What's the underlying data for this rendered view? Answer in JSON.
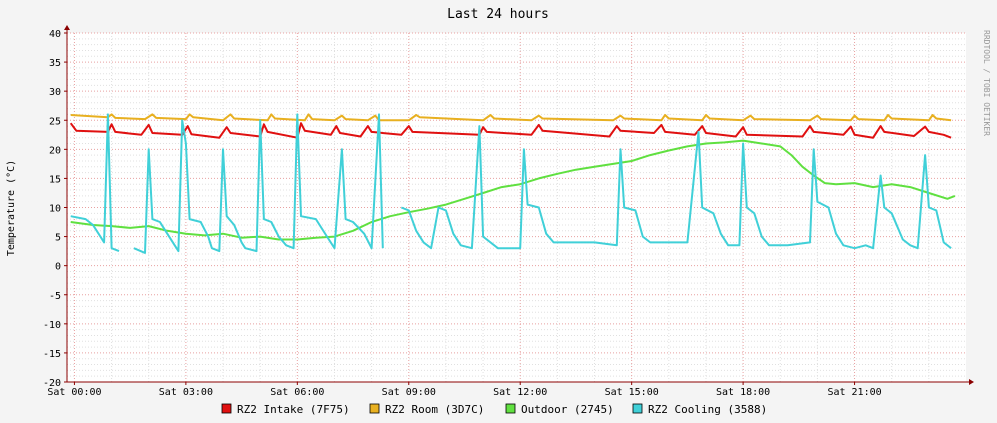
{
  "chart_data": {
    "type": "line",
    "title": "Last 24 hours",
    "ylabel": "Temperature (°C)",
    "watermark": "RRDTOOL / TOBI OETIKER",
    "ylim": [
      -20,
      40
    ],
    "yticks": [
      40,
      35,
      30,
      25,
      20,
      15,
      10,
      5,
      0,
      -5,
      -10,
      -15,
      -20
    ],
    "xlim": [
      -0.2,
      24.0
    ],
    "xticks": [
      {
        "label": "Sat 00:00",
        "h": 0
      },
      {
        "label": "Sat 03:00",
        "h": 3
      },
      {
        "label": "Sat 06:00",
        "h": 6
      },
      {
        "label": "Sat 09:00",
        "h": 9
      },
      {
        "label": "Sat 12:00",
        "h": 12
      },
      {
        "label": "Sat 15:00",
        "h": 15
      },
      {
        "label": "Sat 18:00",
        "h": 18
      },
      {
        "label": "Sat 21:00",
        "h": 21
      }
    ],
    "colors": {
      "background": "#f4f4f4",
      "plot": "#ffffff",
      "grid_major": "#e8a0a0",
      "grid_minor": "#e0e0e0",
      "axis": "#8b0000"
    },
    "series": [
      {
        "name": "RZ2 Intake (7F75)",
        "color": "#e01010",
        "points": [
          [
            -0.1,
            24.5
          ],
          [
            0.05,
            23.2
          ],
          [
            0.9,
            23.0
          ],
          [
            1.0,
            24.3
          ],
          [
            1.1,
            23.0
          ],
          [
            1.8,
            22.5
          ],
          [
            2.0,
            24.2
          ],
          [
            2.1,
            22.8
          ],
          [
            2.9,
            22.5
          ],
          [
            3.05,
            24.0
          ],
          [
            3.15,
            22.6
          ],
          [
            3.9,
            22.0
          ],
          [
            4.1,
            23.8
          ],
          [
            4.2,
            22.8
          ],
          [
            5.0,
            22.2
          ],
          [
            5.1,
            24.3
          ],
          [
            5.2,
            23.0
          ],
          [
            6.0,
            22.0
          ],
          [
            6.1,
            24.5
          ],
          [
            6.2,
            23.2
          ],
          [
            6.9,
            22.5
          ],
          [
            7.05,
            24.0
          ],
          [
            7.15,
            22.8
          ],
          [
            7.7,
            22.2
          ],
          [
            7.9,
            24.0
          ],
          [
            8.0,
            23.0
          ],
          [
            8.8,
            22.5
          ],
          [
            9.0,
            24.0
          ],
          [
            9.1,
            23.0
          ],
          [
            10.9,
            22.5
          ],
          [
            11.0,
            23.8
          ],
          [
            11.1,
            23.0
          ],
          [
            12.3,
            22.5
          ],
          [
            12.5,
            24.2
          ],
          [
            12.6,
            23.2
          ],
          [
            14.4,
            22.2
          ],
          [
            14.6,
            24.0
          ],
          [
            14.7,
            23.2
          ],
          [
            15.6,
            22.8
          ],
          [
            15.8,
            24.2
          ],
          [
            15.9,
            23.0
          ],
          [
            16.7,
            22.5
          ],
          [
            16.9,
            24.0
          ],
          [
            17.0,
            22.8
          ],
          [
            17.8,
            22.2
          ],
          [
            18.0,
            23.8
          ],
          [
            18.1,
            22.5
          ],
          [
            19.6,
            22.2
          ],
          [
            19.8,
            24.0
          ],
          [
            19.9,
            23.0
          ],
          [
            20.7,
            22.5
          ],
          [
            20.9,
            23.9
          ],
          [
            21.0,
            22.5
          ],
          [
            21.5,
            22.0
          ],
          [
            21.7,
            24.0
          ],
          [
            21.8,
            23.0
          ],
          [
            22.6,
            22.3
          ],
          [
            22.9,
            23.9
          ],
          [
            23.0,
            23.0
          ],
          [
            23.4,
            22.5
          ],
          [
            23.6,
            22.0
          ]
        ]
      },
      {
        "name": "RZ2 Room (3D7C)",
        "color": "#e8b020",
        "points": [
          [
            -0.1,
            25.9
          ],
          [
            0.9,
            25.5
          ],
          [
            1.0,
            26.0
          ],
          [
            1.1,
            25.4
          ],
          [
            1.9,
            25.2
          ],
          [
            2.1,
            26.0
          ],
          [
            2.2,
            25.4
          ],
          [
            3.0,
            25.2
          ],
          [
            3.1,
            26.0
          ],
          [
            3.2,
            25.5
          ],
          [
            4.0,
            25.0
          ],
          [
            4.2,
            26.0
          ],
          [
            4.3,
            25.3
          ],
          [
            5.2,
            25.0
          ],
          [
            5.3,
            26.0
          ],
          [
            5.4,
            25.3
          ],
          [
            6.2,
            25.0
          ],
          [
            6.3,
            26.0
          ],
          [
            6.4,
            25.2
          ],
          [
            7.0,
            25.0
          ],
          [
            7.2,
            25.8
          ],
          [
            7.3,
            25.2
          ],
          [
            7.9,
            25.0
          ],
          [
            8.1,
            25.8
          ],
          [
            8.2,
            25.0
          ],
          [
            9.0,
            25.0
          ],
          [
            9.2,
            25.9
          ],
          [
            9.3,
            25.5
          ],
          [
            11.0,
            25.0
          ],
          [
            11.2,
            25.9
          ],
          [
            11.3,
            25.3
          ],
          [
            12.3,
            25.0
          ],
          [
            12.5,
            25.8
          ],
          [
            12.6,
            25.3
          ],
          [
            14.5,
            25.0
          ],
          [
            14.7,
            25.8
          ],
          [
            14.8,
            25.3
          ],
          [
            15.8,
            25.0
          ],
          [
            15.9,
            25.9
          ],
          [
            16.0,
            25.3
          ],
          [
            16.9,
            25.0
          ],
          [
            17.0,
            25.9
          ],
          [
            17.1,
            25.3
          ],
          [
            18.0,
            25.0
          ],
          [
            18.2,
            25.8
          ],
          [
            18.3,
            25.2
          ],
          [
            19.8,
            25.0
          ],
          [
            20.0,
            25.8
          ],
          [
            20.1,
            25.2
          ],
          [
            20.9,
            25.0
          ],
          [
            21.0,
            25.8
          ],
          [
            21.1,
            25.2
          ],
          [
            21.8,
            25.0
          ],
          [
            21.9,
            25.9
          ],
          [
            22.0,
            25.3
          ],
          [
            23.0,
            25.0
          ],
          [
            23.1,
            25.9
          ],
          [
            23.2,
            25.3
          ],
          [
            23.6,
            25.0
          ]
        ]
      },
      {
        "name": "Outdoor (2745)",
        "color": "#60e040",
        "points": [
          [
            -0.1,
            7.5
          ],
          [
            0.5,
            7.0
          ],
          [
            1.0,
            6.8
          ],
          [
            1.5,
            6.5
          ],
          [
            2.0,
            6.8
          ],
          [
            2.5,
            6.0
          ],
          [
            3.0,
            5.5
          ],
          [
            3.5,
            5.2
          ],
          [
            4.0,
            5.5
          ],
          [
            4.5,
            4.8
          ],
          [
            5.0,
            5.0
          ],
          [
            5.5,
            4.5
          ],
          [
            6.0,
            4.5
          ],
          [
            6.5,
            4.8
          ],
          [
            7.0,
            5.0
          ],
          [
            7.5,
            6.0
          ],
          [
            8.0,
            7.5
          ],
          [
            8.5,
            8.5
          ],
          [
            9.0,
            9.2
          ],
          [
            9.5,
            9.8
          ],
          [
            10.0,
            10.5
          ],
          [
            10.5,
            11.5
          ],
          [
            11.0,
            12.5
          ],
          [
            11.5,
            13.5
          ],
          [
            12.0,
            14.0
          ],
          [
            12.5,
            15.0
          ],
          [
            13.0,
            15.8
          ],
          [
            13.5,
            16.5
          ],
          [
            14.0,
            17.0
          ],
          [
            14.5,
            17.5
          ],
          [
            15.0,
            18.0
          ],
          [
            15.5,
            19.0
          ],
          [
            16.0,
            19.8
          ],
          [
            16.5,
            20.5
          ],
          [
            17.0,
            21.0
          ],
          [
            17.5,
            21.2
          ],
          [
            18.0,
            21.5
          ],
          [
            18.5,
            21.0
          ],
          [
            19.0,
            20.5
          ],
          [
            19.3,
            19.0
          ],
          [
            19.6,
            17.0
          ],
          [
            19.9,
            15.5
          ],
          [
            20.2,
            14.2
          ],
          [
            20.5,
            14.0
          ],
          [
            21.0,
            14.2
          ],
          [
            21.5,
            13.5
          ],
          [
            22.0,
            14.0
          ],
          [
            22.5,
            13.5
          ],
          [
            23.0,
            12.5
          ],
          [
            23.5,
            11.5
          ],
          [
            23.7,
            12.0
          ]
        ]
      },
      {
        "name": "RZ2 Cooling (3588)",
        "color": "#40d0d8",
        "points": [
          [
            -0.1,
            8.5
          ],
          [
            0.3,
            8.0
          ],
          [
            0.5,
            7.0
          ],
          [
            0.7,
            5.0
          ],
          [
            0.8,
            4.0
          ],
          [
            0.9,
            26.0
          ],
          [
            1.0,
            3.0
          ],
          [
            1.2,
            2.5
          ],
          [
            1.3,
            null
          ],
          [
            1.6,
            3.0
          ],
          [
            1.9,
            2.2
          ],
          [
            2.0,
            20.0
          ],
          [
            2.1,
            8.0
          ],
          [
            2.3,
            7.5
          ],
          [
            2.5,
            5.5
          ],
          [
            2.7,
            3.5
          ],
          [
            2.8,
            2.5
          ],
          [
            2.9,
            25.0
          ],
          [
            3.0,
            21.0
          ],
          [
            3.1,
            8.0
          ],
          [
            3.4,
            7.5
          ],
          [
            3.6,
            5.0
          ],
          [
            3.7,
            3.0
          ],
          [
            3.9,
            2.5
          ],
          [
            4.0,
            20.0
          ],
          [
            4.1,
            8.5
          ],
          [
            4.3,
            7.0
          ],
          [
            4.5,
            4.0
          ],
          [
            4.6,
            3.0
          ],
          [
            4.9,
            2.5
          ],
          [
            5.0,
            25.0
          ],
          [
            5.1,
            8.0
          ],
          [
            5.3,
            7.5
          ],
          [
            5.5,
            5.0
          ],
          [
            5.7,
            3.5
          ],
          [
            5.9,
            3.0
          ],
          [
            6.0,
            26.0
          ],
          [
            6.1,
            8.5
          ],
          [
            6.5,
            8.0
          ],
          [
            6.8,
            5.0
          ],
          [
            7.0,
            3.0
          ],
          [
            7.2,
            20.0
          ],
          [
            7.3,
            8.0
          ],
          [
            7.5,
            7.5
          ],
          [
            7.8,
            5.5
          ],
          [
            8.0,
            3.0
          ],
          [
            8.2,
            26.0
          ],
          [
            8.3,
            3.0
          ],
          [
            8.5,
            null
          ],
          [
            8.8,
            10.0
          ],
          [
            9.0,
            9.5
          ],
          [
            9.2,
            6.0
          ],
          [
            9.4,
            4.0
          ],
          [
            9.6,
            3.0
          ],
          [
            9.8,
            10.0
          ],
          [
            10.0,
            9.5
          ],
          [
            10.2,
            5.5
          ],
          [
            10.4,
            3.5
          ],
          [
            10.7,
            3.0
          ],
          [
            10.9,
            24.0
          ],
          [
            11.0,
            5.0
          ],
          [
            11.4,
            3.0
          ],
          [
            12.0,
            3.0
          ],
          [
            12.1,
            20.0
          ],
          [
            12.2,
            10.5
          ],
          [
            12.5,
            10.0
          ],
          [
            12.7,
            5.5
          ],
          [
            12.9,
            4.0
          ],
          [
            13.5,
            4.0
          ],
          [
            14.0,
            4.0
          ],
          [
            14.6,
            3.5
          ],
          [
            14.7,
            20.0
          ],
          [
            14.8,
            10.0
          ],
          [
            15.1,
            9.5
          ],
          [
            15.3,
            5.0
          ],
          [
            15.5,
            4.0
          ],
          [
            16.0,
            4.0
          ],
          [
            16.5,
            4.0
          ],
          [
            16.8,
            23.0
          ],
          [
            16.9,
            10.0
          ],
          [
            17.2,
            9.0
          ],
          [
            17.4,
            5.5
          ],
          [
            17.6,
            3.5
          ],
          [
            17.9,
            3.5
          ],
          [
            18.0,
            21.0
          ],
          [
            18.1,
            10.0
          ],
          [
            18.3,
            9.0
          ],
          [
            18.5,
            5.0
          ],
          [
            18.7,
            3.5
          ],
          [
            19.0,
            3.5
          ],
          [
            19.2,
            3.5
          ],
          [
            19.8,
            4.0
          ],
          [
            19.9,
            20.0
          ],
          [
            20.0,
            11.0
          ],
          [
            20.3,
            10.0
          ],
          [
            20.5,
            5.5
          ],
          [
            20.7,
            3.5
          ],
          [
            21.0,
            3.0
          ],
          [
            21.3,
            3.5
          ],
          [
            21.5,
            3.0
          ],
          [
            21.7,
            15.5
          ],
          [
            21.8,
            10.0
          ],
          [
            22.0,
            9.0
          ],
          [
            22.3,
            4.5
          ],
          [
            22.5,
            3.5
          ],
          [
            22.7,
            3.0
          ],
          [
            22.9,
            19.0
          ],
          [
            23.0,
            10.0
          ],
          [
            23.2,
            9.5
          ],
          [
            23.4,
            4.0
          ],
          [
            23.6,
            3.0
          ]
        ]
      }
    ]
  }
}
